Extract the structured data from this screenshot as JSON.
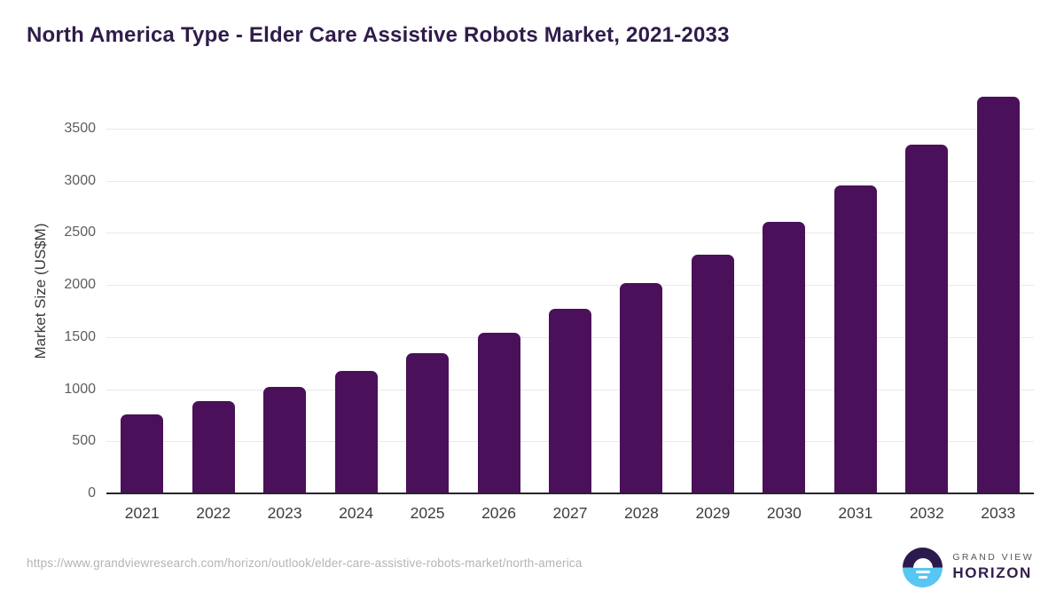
{
  "header": {
    "title": "North America Type - Elder Care Assistive Robots Market, 2021-2033"
  },
  "chart_data": {
    "type": "bar",
    "title": "North America Type - Elder Care Assistive Robots Market, 2021-2033",
    "categories": [
      "2021",
      "2022",
      "2023",
      "2024",
      "2025",
      "2026",
      "2027",
      "2028",
      "2029",
      "2030",
      "2031",
      "2032",
      "2033"
    ],
    "values": [
      750,
      875,
      1010,
      1165,
      1335,
      1535,
      1760,
      2010,
      2280,
      2600,
      2950,
      3340,
      3800
    ],
    "xlabel": "",
    "ylabel": "Market Size (US$M)",
    "yticks": [
      0,
      500,
      1000,
      1500,
      2000,
      2500,
      3000,
      3500
    ],
    "ylim": [
      0,
      3890
    ],
    "grid": true,
    "legend": false,
    "bar_color": "#4a1059"
  },
  "footer": {
    "source_url": "https://www.grandviewresearch.com/horizon/outlook/elder-care-assistive-robots-market/north-america",
    "logo": {
      "line1": "GRAND VIEW",
      "line2": "HORIZON"
    }
  },
  "colors": {
    "accent_bar": "#4a1059",
    "title_text": "#2f1c4b",
    "tick_text": "#5e5e60",
    "x_tick_text": "#3e3e40",
    "gridline": "#e9e9ec",
    "axis_line": "#29242f",
    "url_text": "#b4b4b6",
    "logo_dark": "#2b1a4e",
    "logo_blue": "#58c6f3"
  }
}
